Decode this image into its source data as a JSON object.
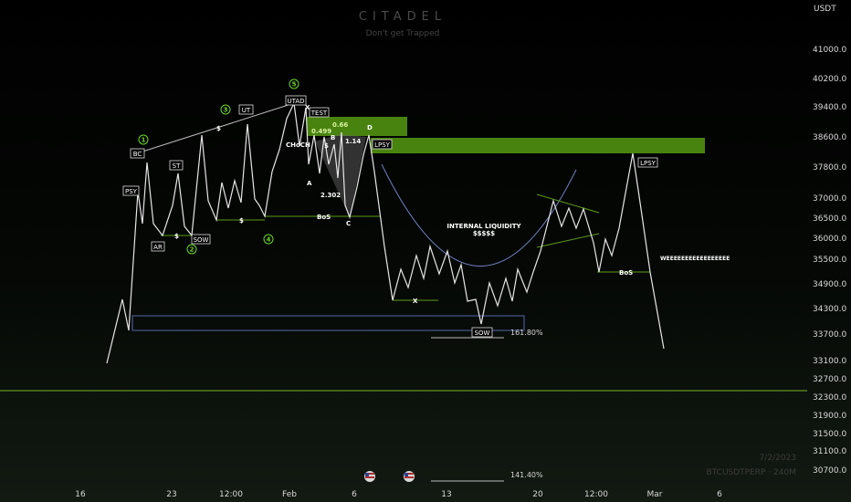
{
  "watermark": {
    "brand": "CITADEL",
    "tagline": "Don't get Trapped",
    "date": "7/2/2023",
    "symbol": "BTCUSDTPERP · 240M"
  },
  "price_axis": {
    "currency": "USDT",
    "labels": [
      "41000.0",
      "40200.0",
      "39400.0",
      "38600.0",
      "37800.0",
      "37000.0",
      "36500.0",
      "36000.0",
      "35500.0",
      "34900.0",
      "34300.0",
      "33700.0",
      "33100.0",
      "32700.0",
      "32300.0",
      "31900.0",
      "31500.0",
      "31100.0",
      "30700.0"
    ]
  },
  "time_axis": {
    "labels": [
      "16",
      "23",
      "12:00",
      "Feb",
      "6",
      "13",
      "20",
      "12:00",
      "Mar",
      "6"
    ]
  },
  "annotations": {
    "psy": "PSY",
    "bc": "BC",
    "ar": "AR",
    "st": "ST",
    "sow_top": "SOW",
    "ut": "UT",
    "utad": "UTAD",
    "test": "TEST",
    "lpsy_mid": "LPSY",
    "lpsy_right": "LPSY",
    "sow_bottom": "SOW",
    "choch": "CHoCH",
    "bos_left": "BoS",
    "bos_right": "BoS",
    "internal_liquidity": "INTERNAL LIQUIDITY",
    "dollars": "$$$$$",
    "fib_161": "161.80%",
    "fib_141": "141.40%",
    "weee": "WEEEEEEEEEEEEEEEEE",
    "dollar1": "$",
    "dollar2": "$",
    "dollar3": "$",
    "dollar4": "$",
    "x_left": "X",
    "x_mid": "X",
    "pt_a": "A",
    "pt_b": "B",
    "pt_c": "C",
    "pt_d": "D",
    "r0499": "0.499",
    "r066": "0.66",
    "r114": "1.14",
    "r2302": "2.302"
  },
  "wave_counts": [
    "1",
    "2",
    "3",
    "4",
    "5"
  ],
  "colors": {
    "accent": "#5c9c1a",
    "price_line": "#e8e8e8",
    "blue_box": "#5566aa"
  }
}
